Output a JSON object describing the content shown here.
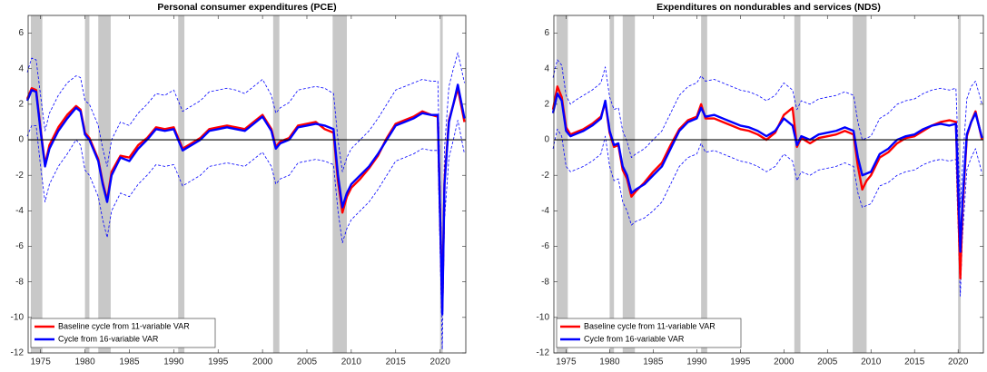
{
  "chart_data": [
    {
      "type": "line",
      "title": "Personal consumer expenditures (PCE)",
      "x": [
        1973.5,
        1974,
        1974.5,
        1975,
        1975.5,
        1976,
        1977,
        1978,
        1979,
        1979.5,
        1980,
        1980.5,
        1981,
        1981.5,
        1982,
        1982.5,
        1983,
        1984,
        1985,
        1986,
        1987,
        1988,
        1989,
        1990,
        1990.5,
        1991,
        1992,
        1993,
        1994,
        1995,
        1996,
        1997,
        1998,
        1999,
        2000,
        2001,
        2001.5,
        2002,
        2003,
        2004,
        2005,
        2006,
        2007,
        2008,
        2008.5,
        2009,
        2009.5,
        2010,
        2011,
        2012,
        2013,
        2014,
        2015,
        2016,
        2017,
        2018,
        2019,
        2019.75,
        2020.25,
        2020.5,
        2021,
        2021.5,
        2022,
        2022.75
      ],
      "series": [
        {
          "style": "dashed",
          "color": "#0000ff",
          "values": [
            3.8,
            4.6,
            4.5,
            2.5,
            0.5,
            1.5,
            2.5,
            3.2,
            3.6,
            3.5,
            2.2,
            2.0,
            1.4,
            0.8,
            -0.5,
            -1.5,
            0.0,
            1.0,
            0.8,
            1.5,
            2.0,
            2.6,
            2.5,
            2.8,
            2.2,
            1.6,
            1.9,
            2.2,
            2.7,
            2.8,
            2.9,
            2.8,
            2.6,
            3.0,
            3.4,
            2.5,
            1.5,
            1.8,
            2.1,
            2.8,
            2.9,
            3.0,
            2.9,
            2.6,
            0.0,
            -1.8,
            -1.0,
            -0.5,
            0.0,
            0.5,
            1.2,
            2.0,
            2.8,
            3.0,
            3.2,
            3.4,
            3.3,
            3.3,
            -7.8,
            -0.5,
            3.0,
            4.0,
            4.9,
            3.2
          ]
        },
        {
          "style": "dashed",
          "color": "#0000ff",
          "values": [
            0.2,
            0.8,
            0.8,
            -1.5,
            -3.5,
            -2.5,
            -1.5,
            -0.8,
            0.0,
            -0.3,
            -1.7,
            -2.0,
            -2.6,
            -3.2,
            -4.5,
            -5.5,
            -4.0,
            -3.0,
            -3.2,
            -2.5,
            -2.0,
            -1.4,
            -1.5,
            -1.4,
            -2.0,
            -2.6,
            -2.3,
            -2.0,
            -1.5,
            -1.4,
            -1.3,
            -1.4,
            -1.5,
            -1.1,
            -0.7,
            -1.5,
            -2.5,
            -2.2,
            -2.0,
            -1.3,
            -1.2,
            -1.1,
            -1.2,
            -1.4,
            -4.0,
            -5.8,
            -5.0,
            -4.5,
            -4.0,
            -3.5,
            -2.8,
            -2.0,
            -1.2,
            -1.0,
            -0.8,
            -0.5,
            -0.6,
            -0.6,
            -11.8,
            -4.5,
            -1.0,
            0.0,
            1.1,
            -0.8
          ]
        },
        {
          "name": "Baseline cycle from 11-variable VAR",
          "color": "#ff0000",
          "values": [
            2.3,
            2.9,
            2.8,
            0.6,
            -1.4,
            -0.3,
            0.7,
            1.4,
            1.9,
            1.7,
            0.4,
            0.1,
            -0.5,
            -1.1,
            -2.4,
            -3.4,
            -1.8,
            -0.9,
            -1.0,
            -0.3,
            0.1,
            0.7,
            0.6,
            0.7,
            0.1,
            -0.5,
            -0.2,
            0.1,
            0.6,
            0.7,
            0.8,
            0.7,
            0.6,
            1.0,
            1.4,
            0.6,
            -0.4,
            -0.1,
            0.1,
            0.8,
            0.9,
            1.0,
            0.6,
            0.4,
            -2.3,
            -4.1,
            -3.2,
            -2.7,
            -2.2,
            -1.6,
            -0.9,
            0.1,
            0.9,
            1.1,
            1.3,
            1.6,
            1.4,
            1.3,
            -9.5,
            -2.3,
            1.1,
            2.0,
            2.9,
            1.0
          ]
        },
        {
          "name": "Cycle from 16-variable VAR",
          "color": "#0000ff",
          "values": [
            2.2,
            2.8,
            2.7,
            0.5,
            -1.5,
            -0.5,
            0.5,
            1.2,
            1.8,
            1.6,
            0.3,
            0.0,
            -0.6,
            -1.2,
            -2.5,
            -3.5,
            -2.0,
            -1.0,
            -1.2,
            -0.5,
            0.0,
            0.6,
            0.5,
            0.6,
            0.0,
            -0.6,
            -0.3,
            0.0,
            0.5,
            0.6,
            0.7,
            0.6,
            0.5,
            0.9,
            1.3,
            0.5,
            -0.5,
            -0.2,
            0.0,
            0.7,
            0.8,
            0.9,
            0.8,
            0.6,
            -2.0,
            -3.8,
            -3.0,
            -2.5,
            -2.0,
            -1.5,
            -0.8,
            0.0,
            0.8,
            1.0,
            1.2,
            1.5,
            1.4,
            1.4,
            -9.8,
            -2.5,
            1.0,
            2.0,
            3.1,
            1.2
          ]
        }
      ],
      "xlim": [
        1973.6,
        2022.9
      ],
      "xticks": [
        1975,
        1980,
        1985,
        1990,
        1995,
        2000,
        2005,
        2010,
        2015,
        2020
      ],
      "ylim": [
        -12,
        7
      ],
      "yticks": [
        -12,
        -10,
        -8,
        -6,
        -4,
        -2,
        0,
        2,
        4,
        6
      ],
      "shaded_regions": [
        [
          1973.9,
          1975.2
        ],
        [
          1980.0,
          1980.5
        ],
        [
          1981.5,
          1982.9
        ],
        [
          1990.5,
          1991.2
        ],
        [
          2001.2,
          2001.9
        ],
        [
          2007.9,
          2009.5
        ],
        [
          2020.0,
          2020.3
        ]
      ],
      "shade_color": "#c8c8c8",
      "legend": "lower left"
    },
    {
      "type": "line",
      "title": "Expenditures on nondurables and services (NDS)",
      "x": [
        1973.5,
        1974,
        1974.5,
        1975,
        1975.5,
        1976,
        1977,
        1978,
        1979,
        1979.5,
        1980,
        1980.5,
        1981,
        1981.5,
        1982,
        1982.5,
        1983,
        1984,
        1985,
        1986,
        1987,
        1988,
        1989,
        1990,
        1990.5,
        1991,
        1992,
        1993,
        1994,
        1995,
        1996,
        1997,
        1998,
        1999,
        2000,
        2001,
        2001.5,
        2002,
        2003,
        2004,
        2005,
        2006,
        2007,
        2008,
        2008.5,
        2009,
        2009.5,
        2010,
        2011,
        2012,
        2013,
        2014,
        2015,
        2016,
        2017,
        2018,
        2019,
        2019.75,
        2020.25,
        2020.5,
        2021,
        2021.5,
        2022,
        2022.75
      ],
      "series": [
        {
          "style": "dashed",
          "color": "#0000ff",
          "values": [
            3.5,
            4.5,
            4.2,
            2.5,
            2.0,
            2.2,
            2.5,
            2.8,
            3.2,
            4.1,
            2.4,
            1.7,
            1.8,
            0.5,
            -0.1,
            -1.0,
            -0.8,
            -0.5,
            0.0,
            0.5,
            1.5,
            2.5,
            3.0,
            3.2,
            3.6,
            3.3,
            3.4,
            3.2,
            3.0,
            2.8,
            2.7,
            2.5,
            2.2,
            2.5,
            3.2,
            2.8,
            1.7,
            2.2,
            2.0,
            2.3,
            2.4,
            2.5,
            2.7,
            2.5,
            1.0,
            0.0,
            0.1,
            0.2,
            1.2,
            1.5,
            2.0,
            2.2,
            2.3,
            2.6,
            2.8,
            2.9,
            2.8,
            2.9,
            -3.8,
            -1.5,
            2.3,
            3.0,
            3.3,
            2.0
          ]
        },
        {
          "style": "dashed",
          "color": "#0000ff",
          "values": [
            -0.5,
            0.6,
            0.2,
            -1.5,
            -1.8,
            -1.7,
            -1.5,
            -1.2,
            -0.8,
            0.2,
            -1.5,
            -2.3,
            -2.2,
            -3.5,
            -4.0,
            -4.8,
            -4.6,
            -4.4,
            -4.0,
            -3.5,
            -2.5,
            -1.5,
            -1.0,
            -0.8,
            -0.2,
            -0.7,
            -0.6,
            -0.8,
            -1.0,
            -1.2,
            -1.3,
            -1.5,
            -1.8,
            -1.5,
            -0.8,
            -1.2,
            -2.3,
            -1.8,
            -2.0,
            -1.7,
            -1.6,
            -1.5,
            -1.3,
            -1.5,
            -3.0,
            -3.8,
            -3.7,
            -3.6,
            -2.6,
            -2.4,
            -2.0,
            -1.8,
            -1.7,
            -1.4,
            -1.2,
            -1.1,
            -1.2,
            -1.1,
            -8.8,
            -5.5,
            -1.7,
            -1.0,
            -0.5,
            -1.9
          ]
        },
        {
          "name": "Baseline cycle from 11-variable VAR",
          "color": "#ff0000",
          "values": [
            1.7,
            3.0,
            2.4,
            0.7,
            0.3,
            0.4,
            0.6,
            0.9,
            1.3,
            2.1,
            0.4,
            -0.4,
            -0.3,
            -1.7,
            -2.2,
            -3.2,
            -2.9,
            -2.4,
            -1.8,
            -1.3,
            -0.3,
            0.6,
            1.1,
            1.3,
            2.0,
            1.2,
            1.2,
            1.0,
            0.8,
            0.6,
            0.5,
            0.3,
            0.0,
            0.4,
            1.4,
            1.8,
            -0.4,
            0.1,
            -0.2,
            0.1,
            0.2,
            0.3,
            0.5,
            0.3,
            -1.5,
            -2.8,
            -2.3,
            -2.0,
            -1.0,
            -0.7,
            -0.2,
            0.1,
            0.2,
            0.5,
            0.8,
            1.0,
            1.1,
            1.0,
            -7.8,
            -4.0,
            0.2,
            1.0,
            1.6,
            0.0
          ]
        },
        {
          "name": "Cycle from 16-variable VAR",
          "color": "#0000ff",
          "values": [
            1.5,
            2.6,
            2.2,
            0.5,
            0.2,
            0.3,
            0.5,
            0.8,
            1.2,
            2.2,
            0.5,
            -0.3,
            -0.2,
            -1.5,
            -2.0,
            -3.0,
            -2.8,
            -2.5,
            -2.0,
            -1.5,
            -0.5,
            0.5,
            1.0,
            1.2,
            1.8,
            1.3,
            1.4,
            1.2,
            1.0,
            0.8,
            0.7,
            0.5,
            0.2,
            0.5,
            1.2,
            0.8,
            -0.3,
            0.2,
            0.0,
            0.3,
            0.4,
            0.5,
            0.7,
            0.5,
            -1.0,
            -2.0,
            -1.9,
            -1.8,
            -0.8,
            -0.5,
            0.0,
            0.2,
            0.3,
            0.6,
            0.8,
            0.9,
            0.8,
            0.9,
            -6.3,
            -3.5,
            0.3,
            1.0,
            1.5,
            0.1
          ]
        }
      ],
      "xlim": [
        1973.6,
        2022.9
      ],
      "xticks": [
        1975,
        1980,
        1985,
        1990,
        1995,
        2000,
        2005,
        2010,
        2015,
        2020
      ],
      "ylim": [
        -12,
        7
      ],
      "yticks": [
        -12,
        -10,
        -8,
        -6,
        -4,
        -2,
        0,
        2,
        4,
        6
      ],
      "shaded_regions": [
        [
          1973.9,
          1975.2
        ],
        [
          1980.0,
          1980.5
        ],
        [
          1981.5,
          1982.9
        ],
        [
          1990.5,
          1991.2
        ],
        [
          2001.2,
          2001.9
        ],
        [
          2007.9,
          2009.5
        ],
        [
          2020.0,
          2020.3
        ]
      ],
      "shade_color": "#c8c8c8",
      "legend": "lower left"
    }
  ]
}
